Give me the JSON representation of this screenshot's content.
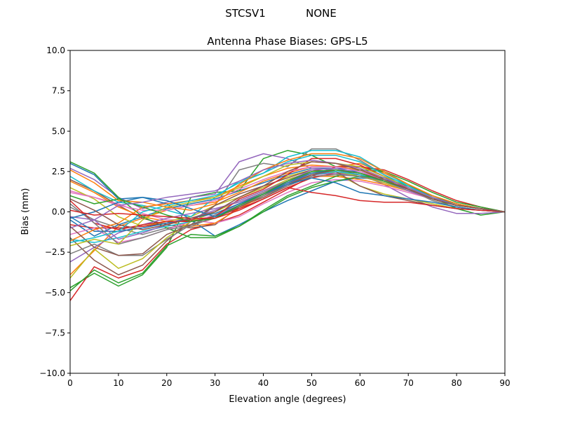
{
  "suptitle_left": "STCSV1",
  "suptitle_right": "NONE",
  "chart_data": {
    "type": "line",
    "title": "Antenna Phase Biases: GPS-L5",
    "xlabel": "Elevation angle (degrees)",
    "ylabel": "Bias (mm)",
    "xlim": [
      0,
      90
    ],
    "ylim": [
      -10,
      10
    ],
    "xticks": [
      "0",
      "10",
      "20",
      "30",
      "40",
      "50",
      "60",
      "70",
      "80",
      "90"
    ],
    "yticks": [
      "−10.0",
      "−7.5",
      "−5.0",
      "−2.5",
      "0.0",
      "2.5",
      "5.0",
      "7.5",
      "10.0"
    ],
    "grid": false,
    "colors": [
      "#1f77b4",
      "#ff7f0e",
      "#2ca02c",
      "#d62728",
      "#9467bd",
      "#8c564b",
      "#e377c2",
      "#7f7f7f",
      "#bcbd22",
      "#17becf"
    ],
    "x": [
      0,
      5,
      10,
      15,
      20,
      25,
      30,
      35,
      40,
      45,
      50,
      55,
      60,
      65,
      70,
      75,
      80,
      85,
      90
    ],
    "series": [
      {
        "values": [
          -0.5,
          -1.5,
          -0.8,
          -0.3,
          0.2,
          0.5,
          0.8,
          1.3,
          1.8,
          2.3,
          2.7,
          2.7,
          2.6,
          2.1,
          1.5,
          0.9,
          0.4,
          0.2,
          0
        ]
      },
      {
        "values": [
          -3.9,
          -2.4,
          -0.9,
          -0.4,
          0.1,
          0.4,
          0.6,
          1.2,
          1.9,
          2.4,
          2.8,
          2.8,
          3.0,
          2.4,
          1.7,
          1.0,
          0.5,
          0.2,
          0
        ]
      },
      {
        "values": [
          -4.7,
          -3.8,
          -4.6,
          -3.9,
          -2.2,
          0.9,
          1.2,
          1.3,
          3.3,
          3.8,
          3.5,
          2.8,
          2.8,
          2.5,
          1.7,
          0.9,
          0.2,
          -0.2,
          0
        ]
      },
      {
        "values": [
          -5.5,
          -3.4,
          -4.1,
          -3.6,
          -2.0,
          -1.1,
          -0.7,
          -0.2,
          0.6,
          1.4,
          2.2,
          2.8,
          2.8,
          2.6,
          2.0,
          1.3,
          0.7,
          0.3,
          0
        ]
      },
      {
        "values": [
          2.7,
          2.0,
          0.9,
          0.2,
          0.6,
          0.9,
          1.1,
          3.1,
          3.6,
          3.3,
          2.7,
          2.6,
          2.3,
          1.7,
          0.9,
          0.3,
          -0.1,
          -0.1,
          0
        ]
      },
      {
        "values": [
          2.0,
          1.3,
          0.4,
          -0.4,
          -0.8,
          -1.0,
          -0.8,
          0.3,
          0.9,
          1.6,
          2.3,
          2.4,
          2.2,
          1.8,
          1.3,
          0.8,
          0.4,
          0.2,
          0
        ]
      },
      {
        "values": [
          1.3,
          0.9,
          0.5,
          -0.1,
          -0.5,
          -0.5,
          -0.7,
          -0.3,
          0.5,
          1.2,
          1.8,
          2.0,
          1.9,
          1.6,
          1.2,
          0.8,
          0.4,
          0.2,
          0
        ]
      },
      {
        "values": [
          0.3,
          -0.5,
          -1.0,
          -1.4,
          -1.0,
          -0.8,
          0.4,
          2.6,
          3.0,
          2.8,
          3.9,
          3.9,
          3.2,
          2.3,
          1.4,
          0.7,
          0.3,
          0.1,
          0
        ]
      },
      {
        "values": [
          1.5,
          0.8,
          -0.3,
          -0.9,
          -0.6,
          -0.3,
          0.4,
          0.9,
          1.5,
          2.2,
          2.6,
          2.4,
          1.6,
          1.1,
          0.8,
          0.5,
          0.2,
          0.1,
          0
        ]
      },
      {
        "values": [
          2.2,
          1.3,
          0.6,
          0.4,
          0.1,
          -0.3,
          0.9,
          1.9,
          2.4,
          3.4,
          3.8,
          3.8,
          3.4,
          2.5,
          1.6,
          0.9,
          0.4,
          0.2,
          0
        ]
      },
      {
        "values": [
          3.0,
          2.3,
          0.8,
          0.9,
          0.5,
          -0.5,
          -1.5,
          -0.8,
          0.0,
          0.7,
          1.3,
          1.9,
          2.1,
          2.0,
          1.6,
          1.0,
          0.5,
          0.2,
          0
        ]
      },
      {
        "values": [
          1.9,
          1.2,
          0.3,
          -0.3,
          -0.6,
          -0.9,
          -0.7,
          0.2,
          1.0,
          1.8,
          2.2,
          2.2,
          2.0,
          1.7,
          1.3,
          0.8,
          0.4,
          0.2,
          0
        ]
      },
      {
        "values": [
          3.1,
          2.4,
          0.9,
          -0.3,
          -1.0,
          -1.6,
          -1.6,
          -0.9,
          0.1,
          1.0,
          1.6,
          2.2,
          2.6,
          2.5,
          1.9,
          1.2,
          0.6,
          0.3,
          0
        ]
      },
      {
        "values": [
          -0.8,
          -1.0,
          -1.0,
          -0.9,
          -0.7,
          -0.5,
          -0.3,
          0.2,
          0.8,
          1.5,
          2.1,
          2.4,
          2.3,
          1.9,
          1.4,
          0.9,
          0.4,
          0.2,
          0
        ]
      },
      {
        "values": [
          -3.1,
          -2.2,
          -1.3,
          -0.8,
          -0.4,
          -0.1,
          0.2,
          0.6,
          1.2,
          1.8,
          2.3,
          2.4,
          2.2,
          1.8,
          1.3,
          0.8,
          0.4,
          0.2,
          0
        ]
      },
      {
        "values": [
          -1.6,
          -3.0,
          -3.9,
          -3.3,
          -1.8,
          -0.6,
          0.4,
          1.1,
          1.6,
          2.1,
          2.6,
          2.5,
          1.6,
          1.0,
          0.7,
          0.4,
          0.2,
          0.1,
          0
        ]
      },
      {
        "values": [
          -1.4,
          -1.0,
          -1.9,
          -1.6,
          -1.1,
          -0.6,
          -0.2,
          0.4,
          1.1,
          1.8,
          2.5,
          2.6,
          2.4,
          1.9,
          1.3,
          0.8,
          0.4,
          0.2,
          0
        ]
      },
      {
        "values": [
          -2.6,
          -2.0,
          -2.7,
          -2.7,
          -1.7,
          -0.8,
          -0.2,
          0.5,
          1.2,
          1.9,
          2.4,
          2.5,
          2.3,
          1.9,
          1.4,
          0.8,
          0.4,
          0.2,
          0
        ]
      },
      {
        "values": [
          -4.1,
          -2.3,
          -3.5,
          -2.9,
          -1.6,
          -0.6,
          0.0,
          0.7,
          1.3,
          2.0,
          2.5,
          2.5,
          2.2,
          1.8,
          1.3,
          0.8,
          0.4,
          0.2,
          0
        ]
      },
      {
        "values": [
          -1.7,
          -1.9,
          -1.6,
          -1.2,
          -0.9,
          -0.6,
          -0.3,
          0.3,
          1.0,
          1.7,
          2.3,
          2.5,
          2.3,
          1.9,
          1.4,
          0.8,
          0.4,
          0.2,
          0
        ]
      },
      {
        "values": [
          -0.3,
          -1.2,
          -1.2,
          -1.0,
          -0.7,
          -0.4,
          -0.1,
          0.5,
          1.1,
          1.8,
          2.4,
          2.6,
          2.5,
          2.0,
          1.4,
          0.9,
          0.5,
          0.2,
          0
        ]
      },
      {
        "values": [
          -1.8,
          -1.1,
          -0.7,
          0.3,
          0.5,
          0.7,
          0.9,
          1.6,
          2.2,
          2.7,
          2.9,
          2.8,
          2.6,
          2.1,
          1.5,
          0.9,
          0.4,
          0.2,
          0
        ]
      },
      {
        "values": [
          -4.9,
          -3.6,
          -4.4,
          -3.8,
          -2.1,
          -1.4,
          -1.5,
          -0.9,
          0.0,
          0.9,
          1.5,
          1.9,
          2.2,
          2.1,
          1.6,
          1.0,
          0.5,
          0.2,
          0
        ]
      },
      {
        "values": [
          0.7,
          -0.7,
          -1.1,
          -0.8,
          -0.6,
          -0.6,
          -0.3,
          0.8,
          1.4,
          2.3,
          3.3,
          3.3,
          2.9,
          2.2,
          1.4,
          0.8,
          0.4,
          0.2,
          0
        ]
      },
      {
        "values": [
          -0.3,
          -0.5,
          -1.7,
          -1.3,
          -0.8,
          -0.4,
          0.1,
          0.7,
          1.3,
          1.9,
          2.6,
          2.7,
          2.4,
          1.9,
          1.3,
          0.8,
          0.4,
          0.2,
          0
        ]
      },
      {
        "values": [
          -0.9,
          -2.2,
          -2.7,
          -2.6,
          -1.4,
          -0.8,
          -0.4,
          0.3,
          1.0,
          1.7,
          2.3,
          2.6,
          2.4,
          2.0,
          1.4,
          0.9,
          0.4,
          0.2,
          0
        ]
      },
      {
        "values": [
          1.2,
          0.9,
          0.4,
          0.1,
          0.1,
          0.4,
          0.7,
          1.4,
          2.0,
          2.5,
          2.8,
          2.8,
          2.5,
          2.0,
          1.4,
          0.8,
          0.4,
          0.2,
          0
        ]
      },
      {
        "values": [
          0.5,
          -0.7,
          -2.0,
          -1.6,
          -1.1,
          -0.9,
          -0.3,
          0.4,
          1.0,
          1.6,
          2.2,
          2.3,
          2.2,
          1.9,
          1.4,
          0.9,
          0.4,
          0.2,
          0
        ]
      },
      {
        "values": [
          -2.1,
          -1.7,
          -2.0,
          -0.5,
          0.3,
          0.6,
          0.9,
          1.5,
          2.2,
          2.9,
          3.1,
          3.0,
          2.8,
          2.2,
          1.5,
          0.9,
          0.4,
          0.2,
          0
        ]
      },
      {
        "values": [
          -1.9,
          -1.6,
          -1.2,
          0.0,
          0.4,
          0.7,
          1.0,
          1.8,
          2.4,
          3.1,
          3.5,
          3.5,
          3.1,
          2.3,
          1.6,
          0.9,
          0.4,
          0.2,
          0
        ]
      },
      {
        "values": [
          -0.4,
          0.0,
          0.6,
          0.9,
          0.7,
          0.2,
          -0.3,
          0.4,
          1.1,
          1.7,
          2.1,
          1.8,
          1.2,
          1.0,
          0.8,
          0.6,
          0.3,
          0.1,
          0
        ]
      },
      {
        "values": [
          2.6,
          1.8,
          0.7,
          0.6,
          0.3,
          0.1,
          0.5,
          1.7,
          2.6,
          3.2,
          3.6,
          3.6,
          3.3,
          2.5,
          1.7,
          1.0,
          0.5,
          0.2,
          0
        ]
      },
      {
        "values": [
          1.0,
          0.5,
          0.8,
          0.3,
          -0.2,
          -0.6,
          -0.4,
          0.4,
          1.1,
          1.9,
          2.5,
          2.6,
          2.4,
          1.9,
          1.4,
          0.8,
          0.4,
          0.2,
          0
        ]
      },
      {
        "values": [
          0.1,
          -0.2,
          -0.1,
          -0.2,
          -0.3,
          -0.4,
          -0.4,
          0.1,
          0.8,
          1.5,
          1.2,
          1.0,
          0.7,
          0.6,
          0.6,
          0.4,
          0.2,
          0.1,
          0
        ]
      },
      {
        "values": [
          -1.0,
          -0.5,
          0.4,
          0.6,
          0.9,
          1.1,
          1.3,
          1.9,
          2.6,
          3.0,
          3.2,
          3.0,
          2.7,
          2.1,
          1.5,
          0.9,
          0.4,
          0.2,
          0
        ]
      },
      {
        "values": [
          0.8,
          0.1,
          -0.8,
          -1.1,
          -0.8,
          -0.4,
          0.0,
          0.9,
          1.6,
          2.5,
          3.1,
          3.0,
          2.6,
          2.0,
          1.4,
          0.8,
          0.4,
          0.2,
          0
        ]
      }
    ]
  }
}
